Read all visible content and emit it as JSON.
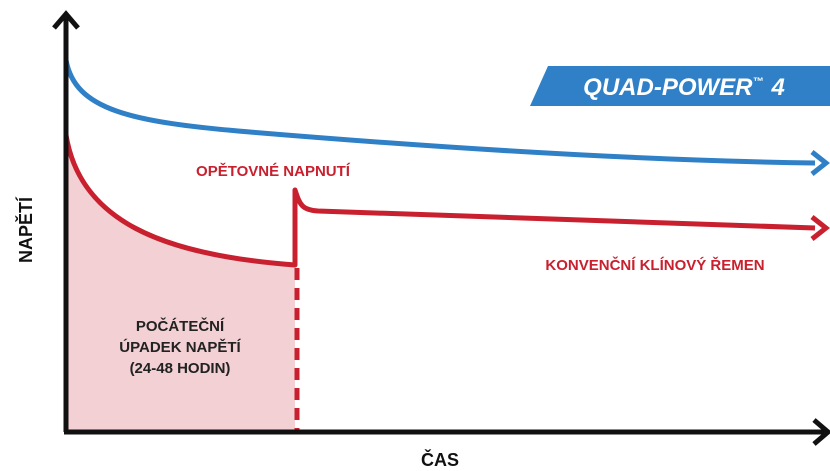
{
  "badge": {
    "name": "QUAD-POWER",
    "mark": "™",
    "number": "4"
  },
  "axes": {
    "y_label": "NAPĚTÍ",
    "x_label": "ČAS"
  },
  "annotations": {
    "retension": "OPĚTOVNÉ NAPNUTÍ",
    "conventional": "KONVENČNÍ KLÍNOVÝ ŘEMEN",
    "initial_drop": [
      "POČÁTEČNÍ",
      "ÚPADEK NAPĚTÍ",
      "(24-48 HODIN)"
    ]
  }
}
